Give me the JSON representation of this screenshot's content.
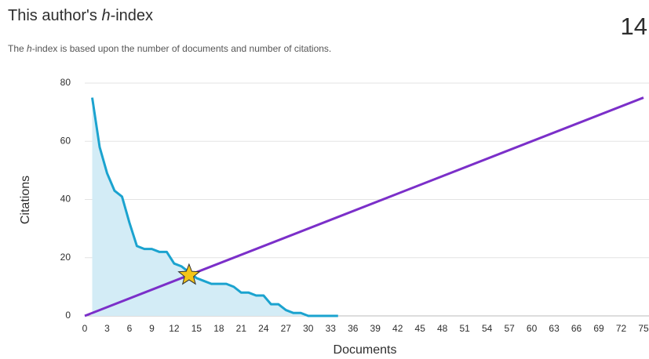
{
  "header": {
    "title": [
      "This author's ",
      "h",
      "-index"
    ],
    "value": 14,
    "subtitle": [
      "The ",
      "h",
      "-index is based upon the number of documents and number of citations."
    ]
  },
  "chart_data": {
    "type": "line",
    "xlabel": "Documents",
    "ylabel": "Citations",
    "xlim": [
      0,
      75
    ],
    "ylim": [
      0,
      80
    ],
    "xticks": [
      0,
      3,
      6,
      9,
      12,
      15,
      18,
      21,
      24,
      27,
      30,
      33,
      36,
      39,
      42,
      45,
      48,
      51,
      54,
      57,
      60,
      63,
      66,
      69,
      72,
      75
    ],
    "yticks": [
      0,
      20,
      40,
      60,
      80
    ],
    "grid": true,
    "series": [
      {
        "color": "#1ba3cf",
        "fill": "#d3ecf6",
        "x": [
          1,
          2,
          3,
          4,
          5,
          6,
          7,
          8,
          9,
          10,
          11,
          12,
          13,
          14,
          15,
          16,
          17,
          18,
          19,
          20,
          21,
          22,
          23,
          24,
          25,
          26,
          27,
          28,
          29,
          30,
          31,
          32,
          33,
          34
        ],
        "values": [
          75,
          58,
          49,
          43,
          41,
          32,
          24,
          23,
          23,
          22,
          22,
          18,
          17,
          15,
          13,
          12,
          11,
          11,
          11,
          10,
          8,
          8,
          7,
          7,
          4,
          4,
          2,
          1,
          1,
          0,
          0,
          0,
          0,
          0
        ]
      },
      {
        "color": "#7b2fc9",
        "x": [
          0,
          75
        ],
        "values": [
          0,
          75
        ]
      }
    ],
    "star_color": "#f5c518"
  }
}
